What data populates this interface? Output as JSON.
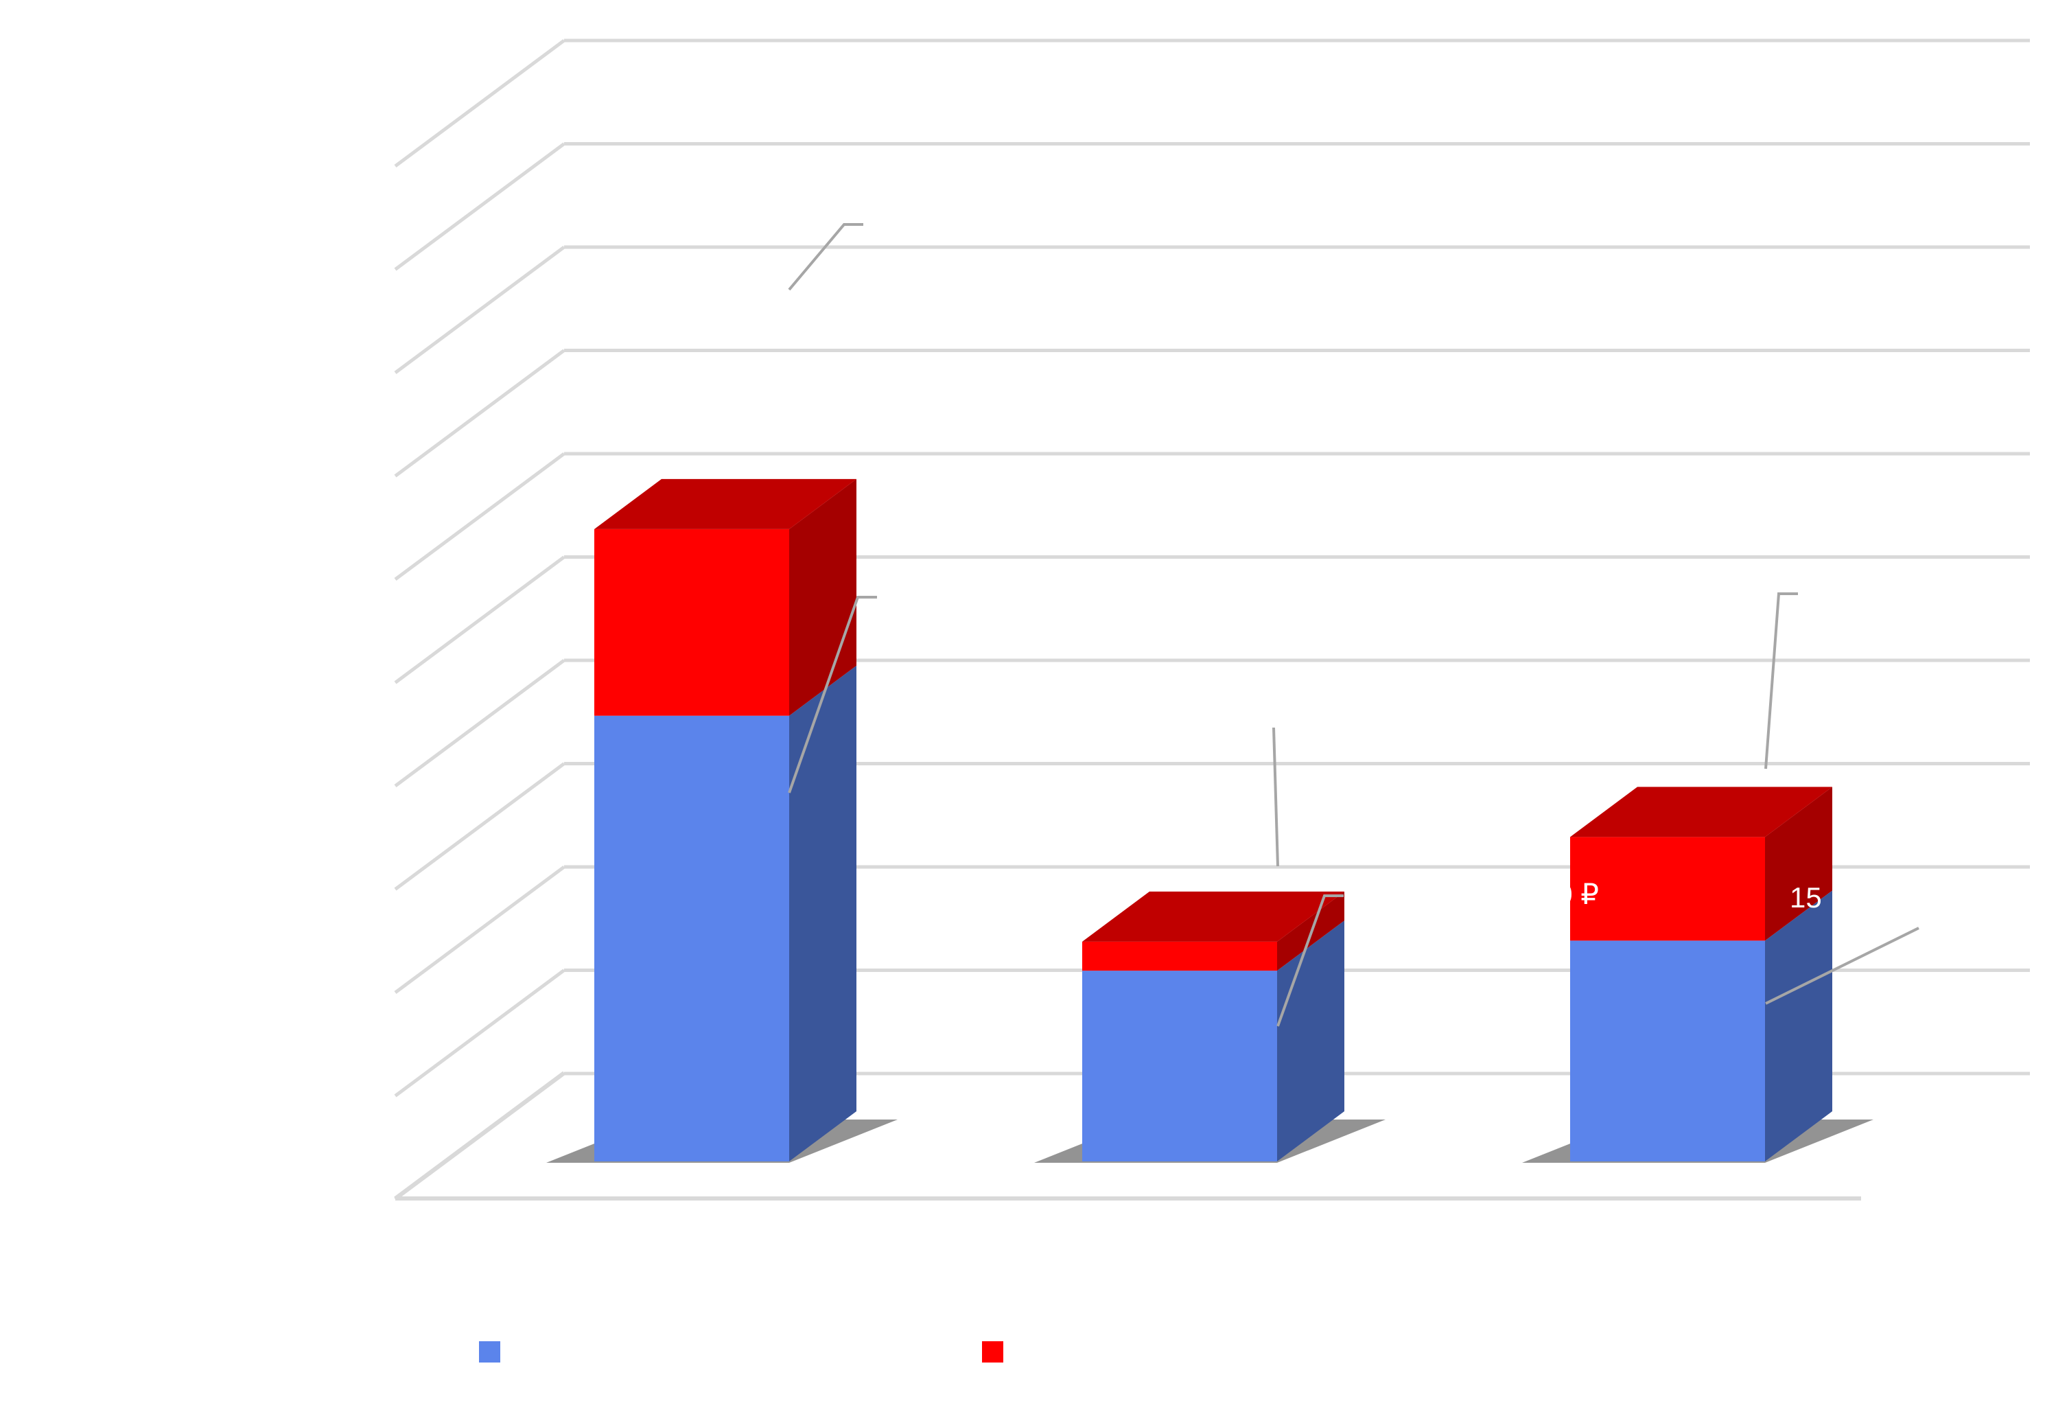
{
  "chart_data": {
    "type": "bar",
    "stacked": true,
    "three_d": true,
    "categories": [
      "",
      "",
      ""
    ],
    "series": [
      {
        "values": [
          43,
          18.4,
          21.3
        ],
        "color": "#5b84eb",
        "side_color": "#3a569a"
      },
      {
        "values": [
          18,
          2.8,
          10
        ],
        "color": "#ff0000",
        "top_color": "#c00000",
        "side_color": "#a50000"
      }
    ],
    "data_labels": [
      {
        "text": "0 ₽",
        "category": 2,
        "series": 0
      },
      {
        "text": "15",
        "category": 2,
        "series": 0
      }
    ],
    "ylim": [
      0,
      110
    ],
    "grid": true,
    "legend": {
      "position": "bottom"
    }
  }
}
